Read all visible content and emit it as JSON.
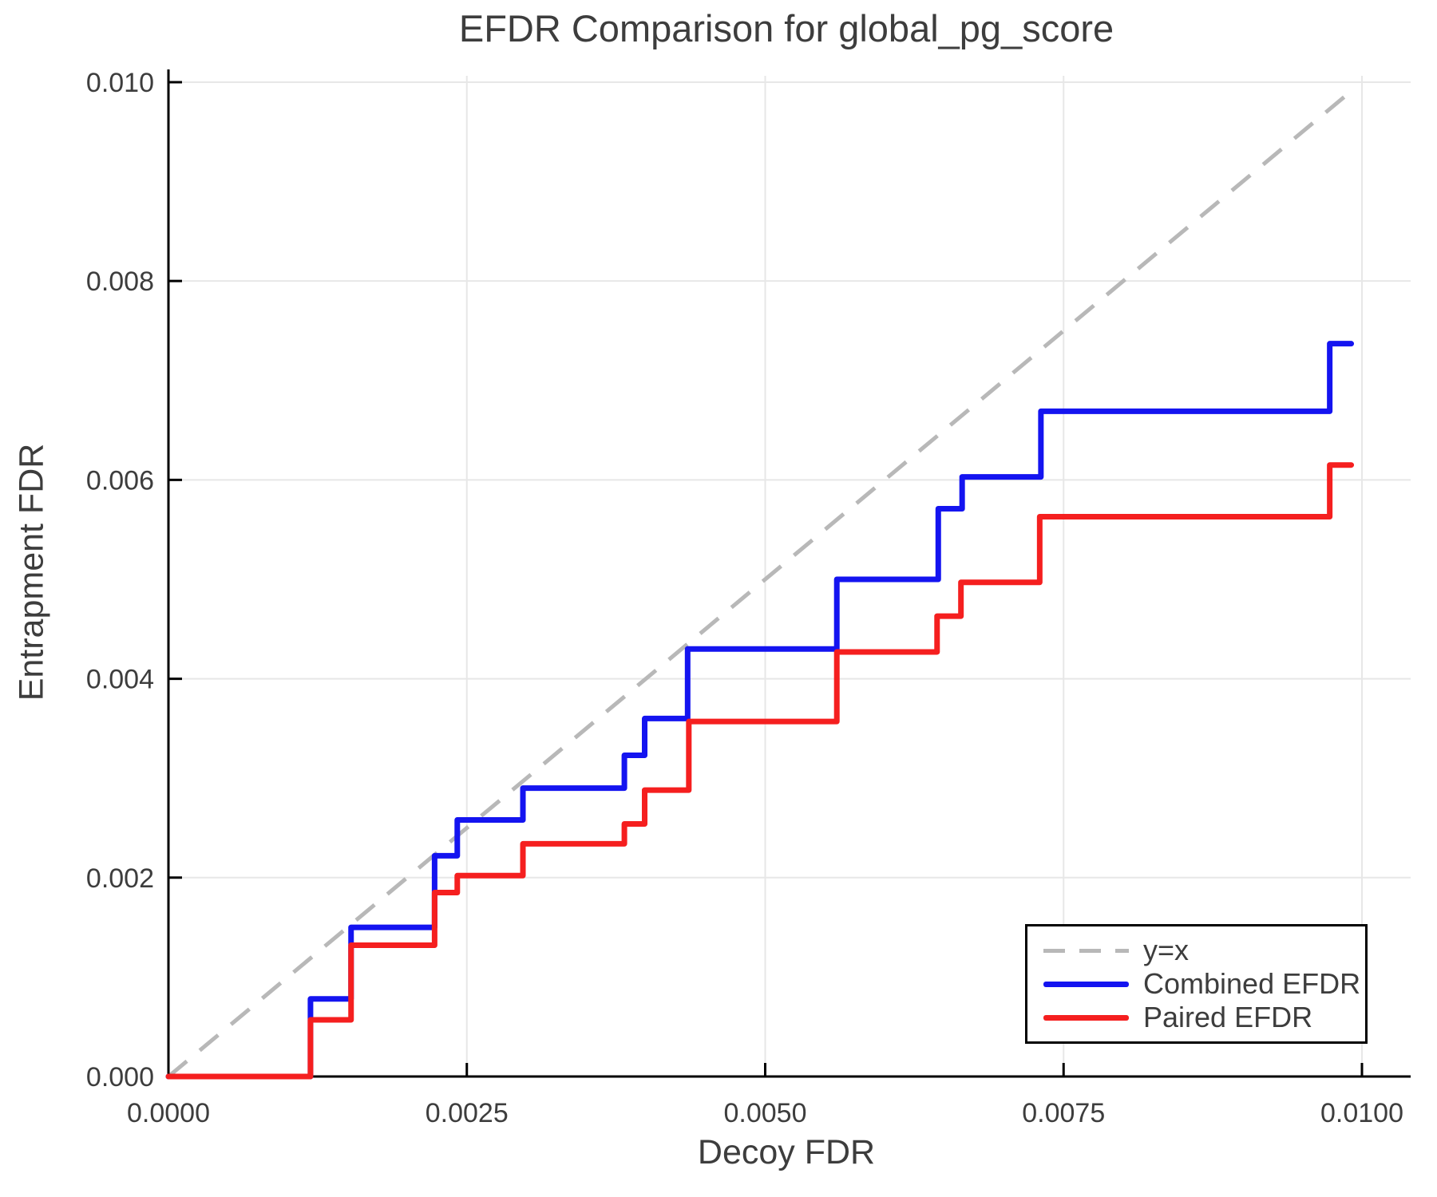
{
  "chart_data": {
    "type": "line",
    "subtype": "step-post",
    "title": "EFDR Comparison for global_pg_score",
    "xlabel": "Decoy FDR",
    "ylabel": "Entrapment FDR",
    "xlim": [
      0,
      0.010408
    ],
    "ylim": [
      0,
      0.010064
    ],
    "grid": true,
    "x_ticks": {
      "values": [
        0,
        0.0025,
        0.005,
        0.0075,
        0.01
      ],
      "labels": [
        "0.0000",
        "0.0025",
        "0.0050",
        "0.0075",
        "0.0100"
      ]
    },
    "y_ticks": {
      "values": [
        0,
        0.002,
        0.004,
        0.006,
        0.008,
        0.01
      ],
      "labels": [
        "0.000",
        "0.002",
        "0.004",
        "0.006",
        "0.008",
        "0.010"
      ]
    },
    "reference_line": {
      "name": "y=x",
      "style": "dashed",
      "color": "#b8b8b8",
      "from": [
        0,
        0
      ],
      "to": [
        0.00994,
        0.00994
      ]
    },
    "series": [
      {
        "name": "Combined EFDR",
        "color": "#1414f0",
        "start": [
          0,
          0
        ],
        "end_x": 0.00991,
        "points": [
          [
            0.00119,
            0.00078
          ],
          [
            0.00153,
            0.0015
          ],
          [
            0.00223,
            0.00222
          ],
          [
            0.00242,
            0.00258
          ],
          [
            0.00297,
            0.0029
          ],
          [
            0.00382,
            0.00323
          ],
          [
            0.00399,
            0.0036
          ],
          [
            0.00435,
            0.0043
          ],
          [
            0.0056,
            0.005
          ],
          [
            0.00645,
            0.00571
          ],
          [
            0.00665,
            0.00603
          ],
          [
            0.00731,
            0.00669
          ],
          [
            0.00973,
            0.00737
          ]
        ]
      },
      {
        "name": "Paired EFDR",
        "color": "#f51f1f",
        "start": [
          0,
          0
        ],
        "end_x": 0.00991,
        "points": [
          [
            0.00119,
            0.00057
          ],
          [
            0.00153,
            0.00132
          ],
          [
            0.00223,
            0.00185
          ],
          [
            0.00242,
            0.00202
          ],
          [
            0.00297,
            0.00234
          ],
          [
            0.00382,
            0.00254
          ],
          [
            0.00399,
            0.00288
          ],
          [
            0.00436,
            0.00357
          ],
          [
            0.0056,
            0.00427
          ],
          [
            0.00644,
            0.00463
          ],
          [
            0.00664,
            0.00497
          ],
          [
            0.0073,
            0.00563
          ],
          [
            0.00973,
            0.00615
          ]
        ]
      }
    ],
    "legend": {
      "position": "bottom-right",
      "entries": [
        {
          "label": "y=x",
          "color": "#b8b8b8",
          "style": "dashed"
        },
        {
          "label": "Combined EFDR",
          "color": "#1414f0",
          "style": "solid"
        },
        {
          "label": "Paired EFDR",
          "color": "#f51f1f",
          "style": "solid"
        }
      ]
    },
    "colors": {
      "axis": "#000000",
      "grid": "#e7e7e7",
      "text": "#3d3d3d",
      "background": "#ffffff"
    }
  }
}
